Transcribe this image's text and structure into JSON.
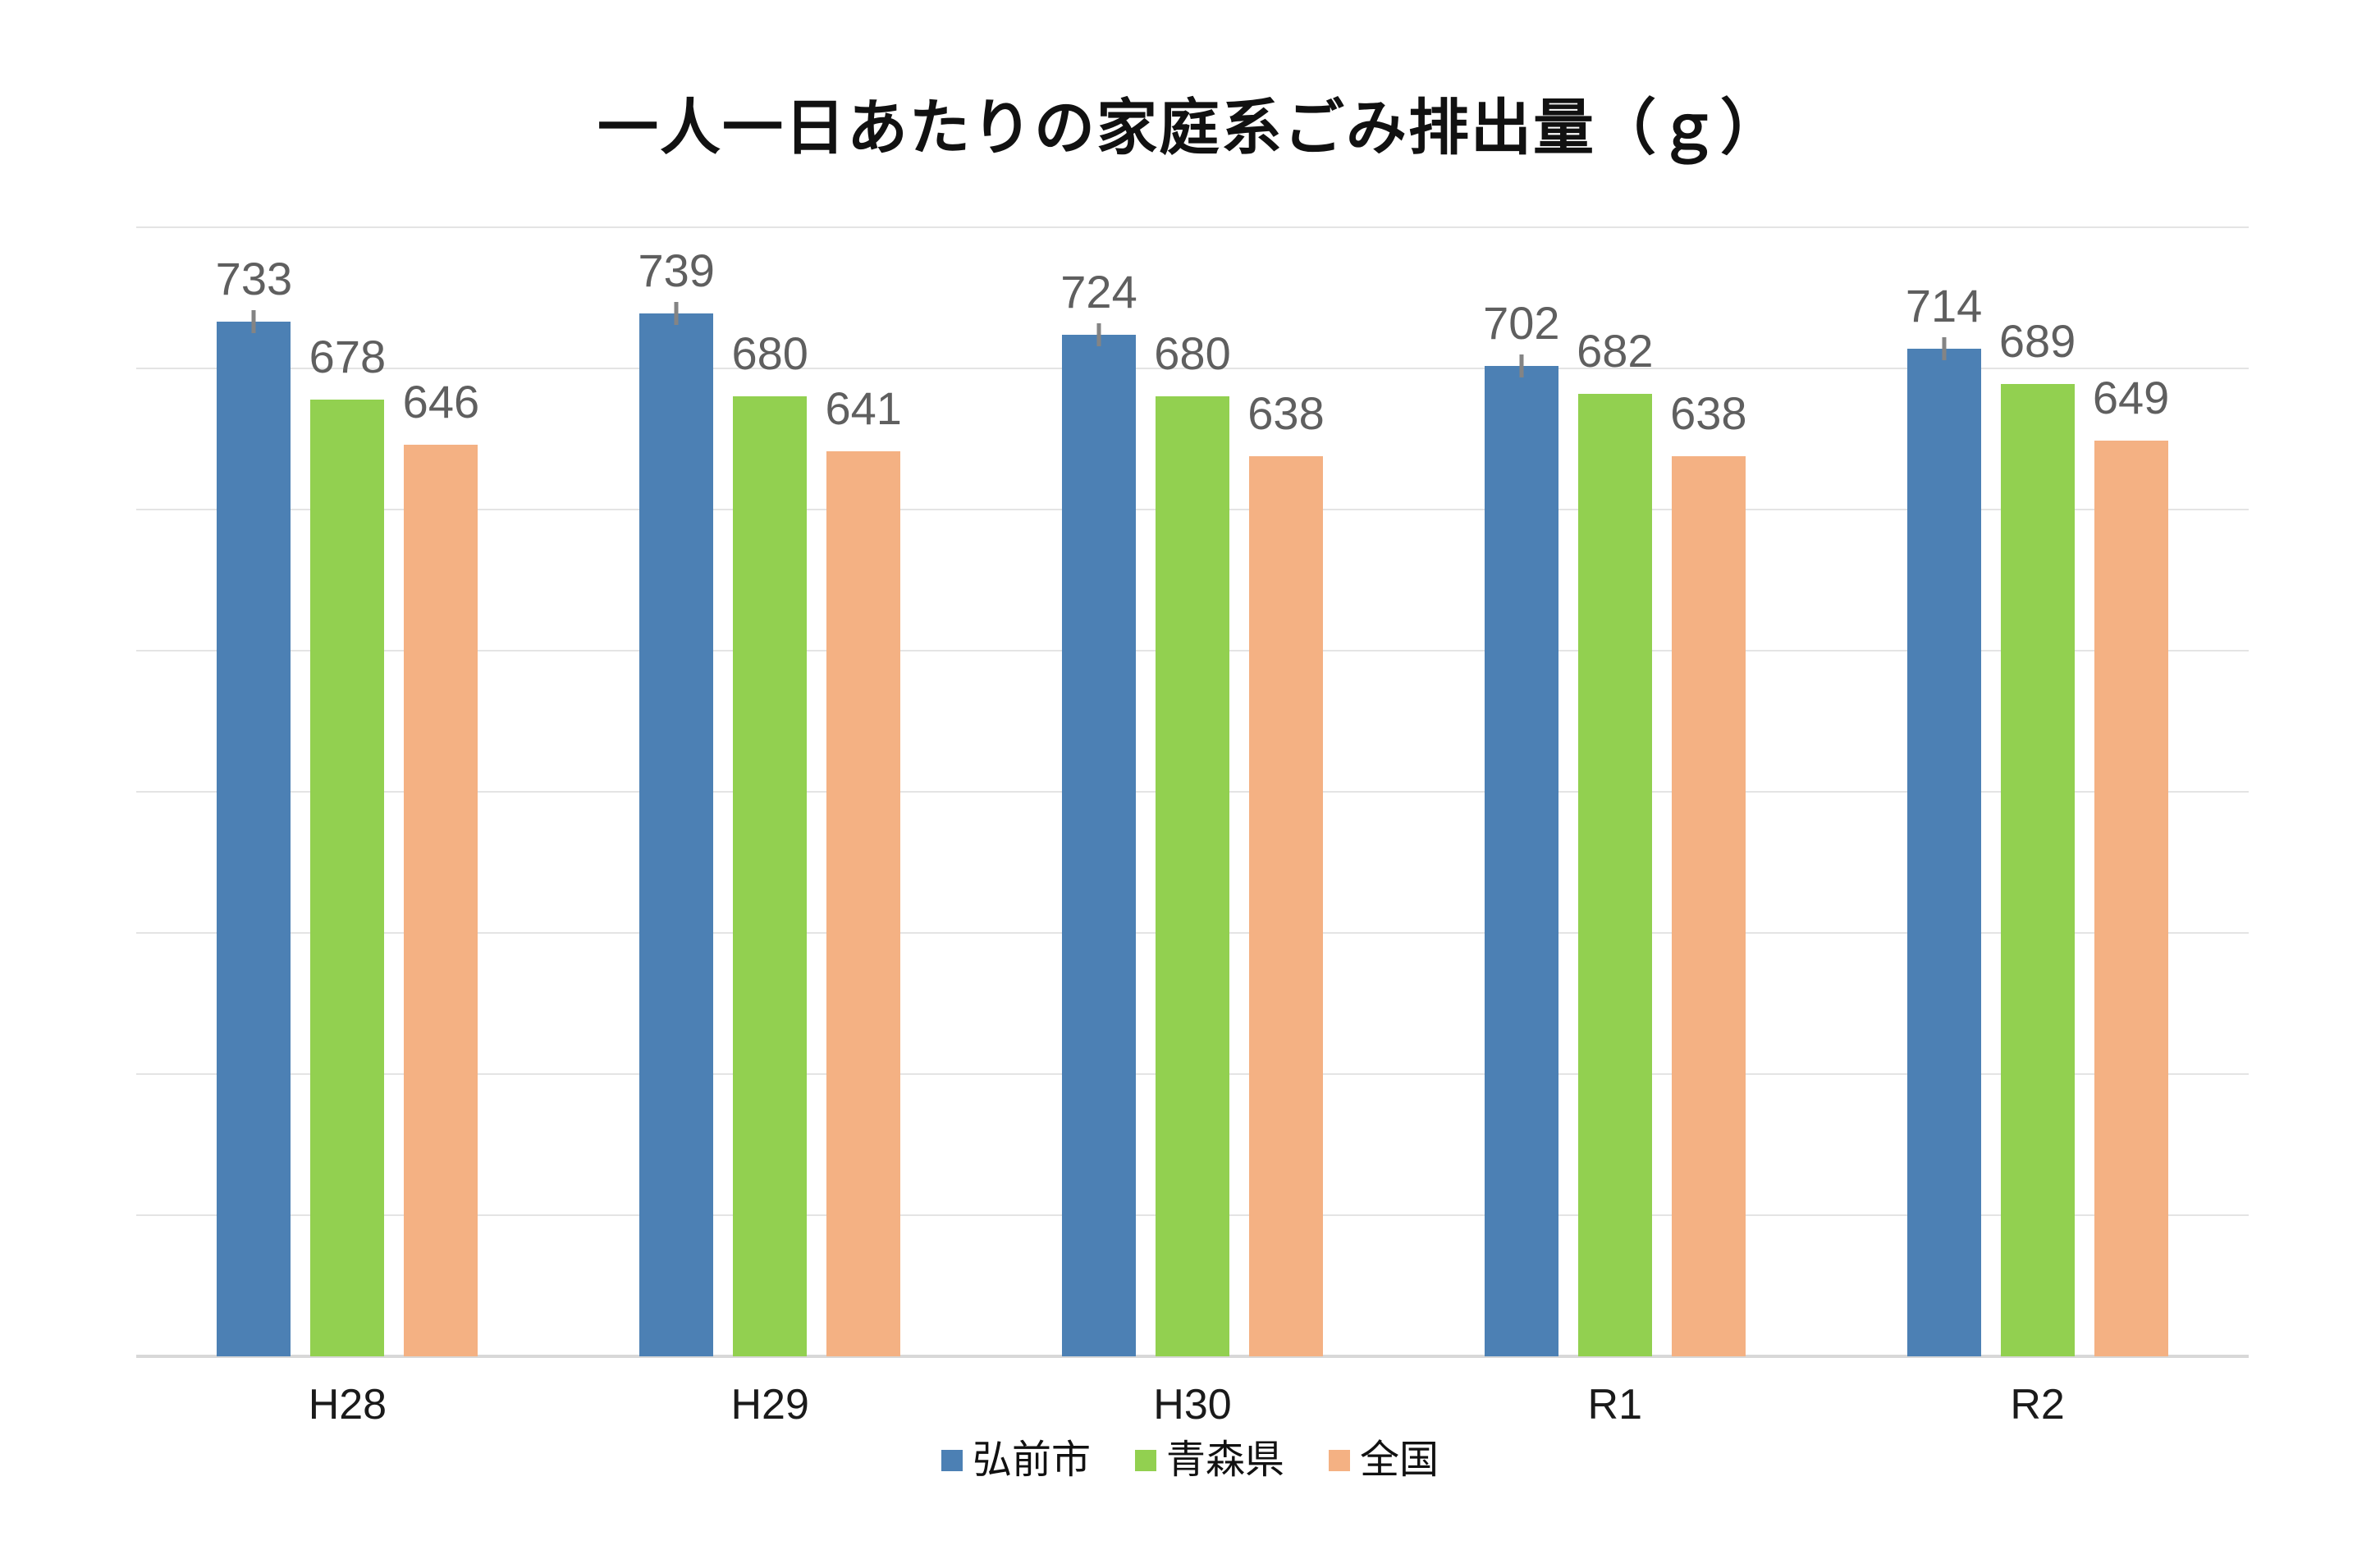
{
  "title": "一人一日あたりの家庭系ごみ排出量（ｇ）",
  "chart_data": {
    "type": "bar",
    "title": "一人一日あたりの家庭系ごみ排出量（ｇ）",
    "xlabel": "",
    "ylabel": "",
    "categories": [
      "H28",
      "H29",
      "H30",
      "R1",
      "R2"
    ],
    "series": [
      {
        "name": "弘前市",
        "color": "#4C80B4",
        "values": [
          733,
          739,
          724,
          702,
          714
        ],
        "error_tick": true
      },
      {
        "name": "青森県",
        "color": "#92D050",
        "values": [
          678,
          680,
          680,
          682,
          689
        ],
        "error_tick": false
      },
      {
        "name": "全国",
        "color": "#F4B183",
        "values": [
          646,
          641,
          638,
          638,
          649
        ],
        "error_tick": false
      }
    ],
    "ylim": [
      0,
      800
    ],
    "gridline_step": 100,
    "grid": "horizontal-only",
    "y_tick_labels_visible": false,
    "data_labels_visible": true,
    "legend_position": "bottom"
  },
  "styles": {
    "data_label_color": "#5F5F5F",
    "gridline_color": "#E4E4E4",
    "axis_line_color": "#D8D8D8",
    "error_tick_color": "#848484",
    "title_color": "#111111",
    "category_label_color": "#1A1A1A",
    "background_color": "#FFFFFF"
  }
}
